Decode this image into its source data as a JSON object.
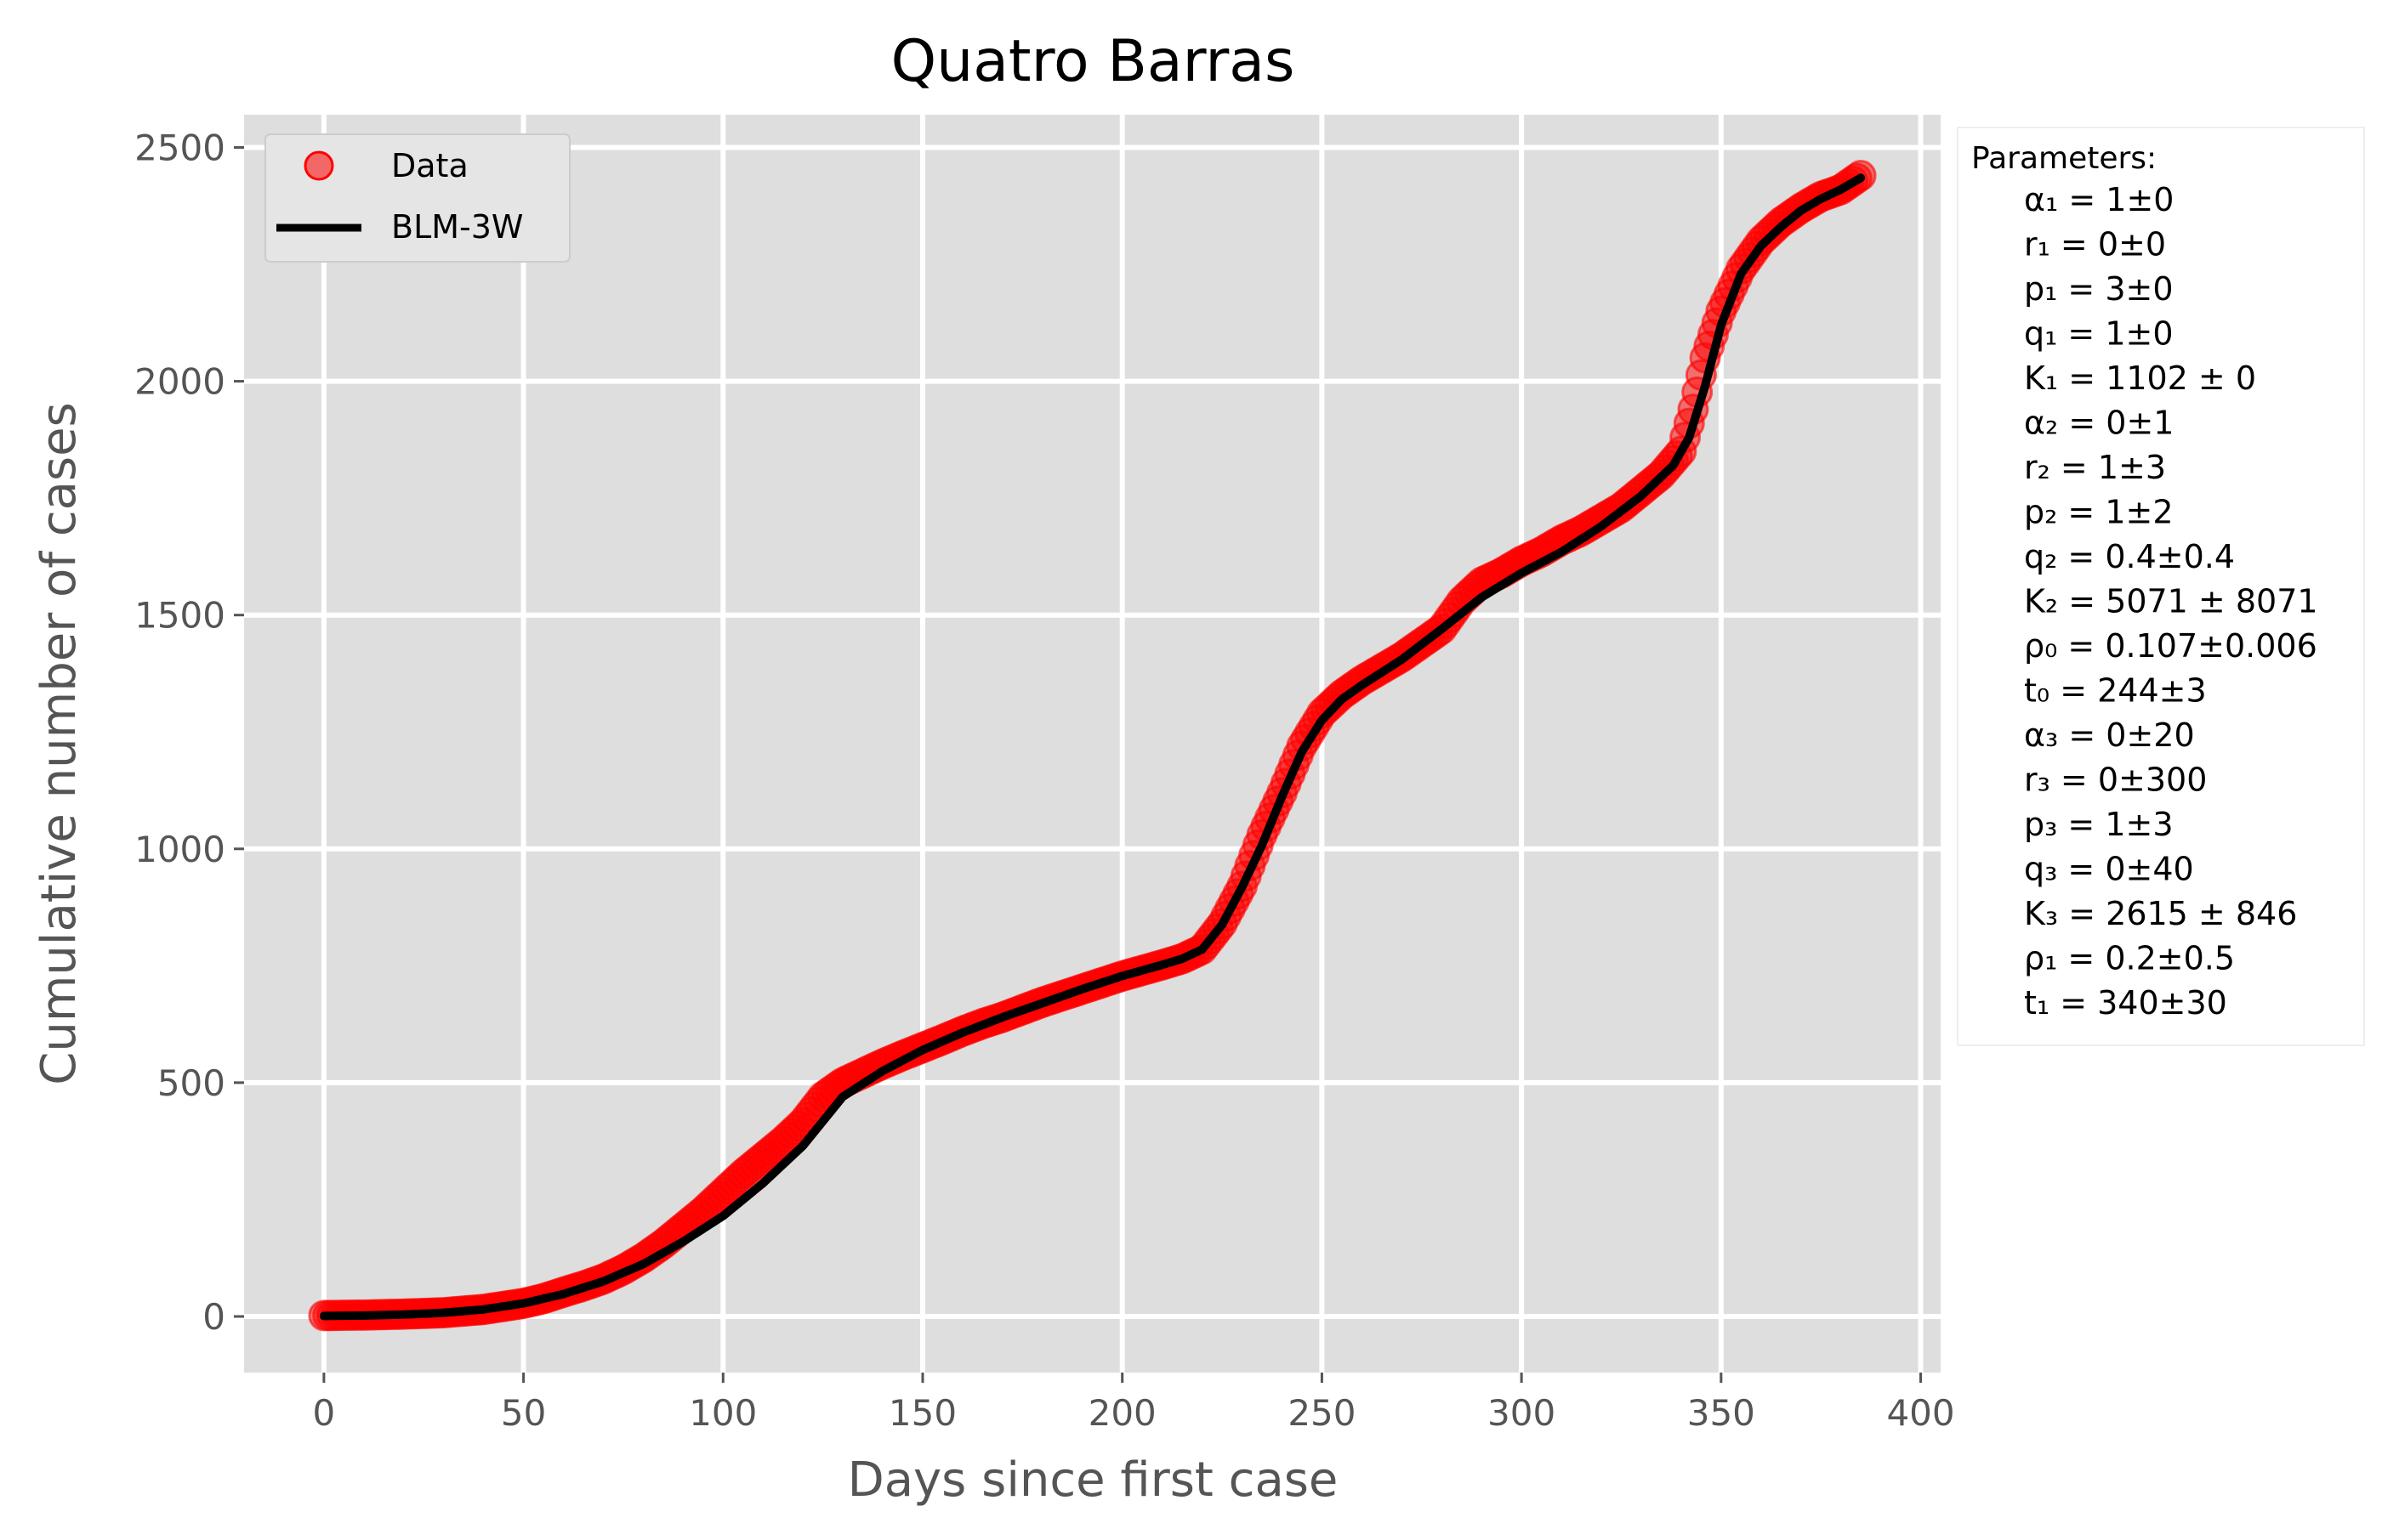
{
  "chart_data": {
    "type": "scatter",
    "title": "Quatro Barras",
    "xlabel": "Days since first case",
    "ylabel": "Cumulative  number of cases",
    "xlim": [
      -20,
      405
    ],
    "ylim": [
      -120,
      2570
    ],
    "xticks": [
      0,
      50,
      100,
      150,
      200,
      250,
      300,
      350,
      400
    ],
    "yticks": [
      0,
      500,
      1000,
      1500,
      2000,
      2500
    ],
    "grid": true,
    "legend_position": "top-left",
    "colors": {
      "data": "#ff0000",
      "fit": "#000000",
      "background": "#dedede",
      "grid": "#ffffff"
    },
    "series": [
      {
        "name": "Data",
        "kind": "points",
        "x": [
          0,
          10,
          20,
          30,
          40,
          50,
          55,
          60,
          65,
          70,
          75,
          80,
          85,
          90,
          95,
          100,
          105,
          110,
          115,
          120,
          125,
          130,
          135,
          140,
          145,
          150,
          155,
          160,
          165,
          170,
          175,
          180,
          185,
          190,
          195,
          200,
          205,
          210,
          215,
          220,
          225,
          230,
          235,
          240,
          245,
          250,
          255,
          260,
          265,
          270,
          275,
          280,
          285,
          290,
          295,
          300,
          305,
          310,
          315,
          320,
          325,
          330,
          335,
          340,
          343,
          346,
          350,
          355,
          360,
          365,
          370,
          375,
          380,
          385
        ],
        "y": [
          2,
          3,
          5,
          8,
          15,
          28,
          38,
          52,
          65,
          80,
          100,
          125,
          155,
          190,
          225,
          265,
          305,
          340,
          375,
          415,
          470,
          500,
          520,
          540,
          558,
          575,
          592,
          610,
          626,
          640,
          656,
          672,
          686,
          700,
          714,
          728,
          740,
          752,
          765,
          785,
          840,
          920,
          1030,
          1120,
          1220,
          1290,
          1330,
          1360,
          1385,
          1410,
          1440,
          1470,
          1530,
          1570,
          1590,
          1615,
          1635,
          1660,
          1680,
          1705,
          1730,
          1765,
          1800,
          1850,
          1940,
          2050,
          2150,
          2240,
          2300,
          2340,
          2370,
          2395,
          2410,
          2440
        ]
      },
      {
        "name": "BLM-3W",
        "kind": "line",
        "x": [
          0,
          10,
          20,
          30,
          40,
          50,
          60,
          70,
          80,
          90,
          100,
          110,
          120,
          130,
          140,
          150,
          160,
          170,
          180,
          190,
          200,
          210,
          215,
          220,
          225,
          230,
          235,
          240,
          245,
          250,
          255,
          260,
          270,
          280,
          290,
          300,
          310,
          320,
          330,
          338,
          342,
          346,
          350,
          355,
          360,
          365,
          370,
          375,
          380,
          385
        ],
        "y": [
          1,
          2,
          4,
          8,
          15,
          28,
          48,
          75,
          112,
          160,
          215,
          285,
          365,
          470,
          525,
          570,
          607,
          640,
          670,
          700,
          728,
          752,
          765,
          785,
          838,
          918,
          1008,
          1112,
          1208,
          1275,
          1320,
          1350,
          1405,
          1470,
          1538,
          1590,
          1635,
          1690,
          1755,
          1820,
          1880,
          1990,
          2120,
          2230,
          2290,
          2330,
          2365,
          2390,
          2410,
          2435
        ]
      }
    ],
    "annotation": {
      "heading": "Parameters:",
      "lines": [
        "α₁ = 1±0",
        "r₁ = 0±0",
        "p₁ = 3±0",
        "q₁ = 1±0",
        "K₁ = 1102 ± 0",
        "α₂ = 0±1",
        "r₂ = 1±3",
        "p₂ = 1±2",
        "q₂ = 0.4±0.4",
        "K₂ = 5071 ± 8071",
        "ρ₀ = 0.107±0.006",
        "t₀ = 244±3",
        "α₃ = 0±20",
        "r₃ = 0±300",
        "p₃ = 1±3",
        "q₃ = 0±40",
        "K₃ = 2615 ± 846",
        "ρ₁ = 0.2±0.5",
        "t₁ = 340±30"
      ]
    }
  }
}
